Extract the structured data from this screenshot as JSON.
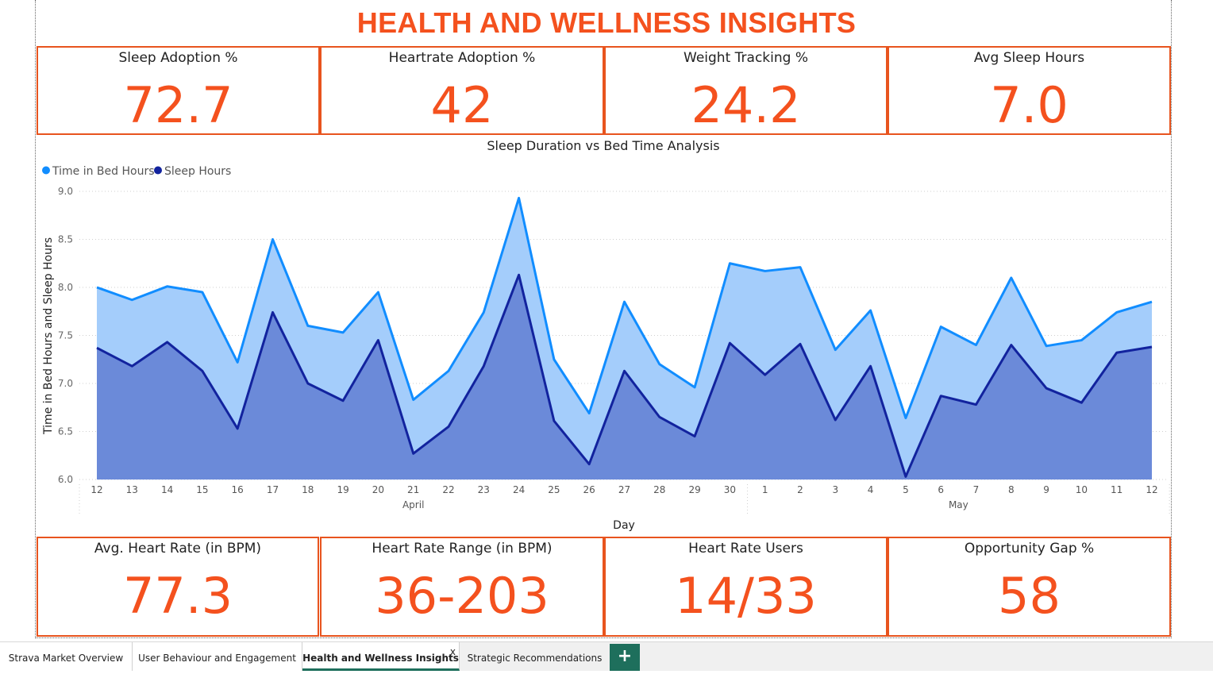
{
  "page": {
    "title": "HEALTH AND WELLNESS INSIGHTS"
  },
  "colors": {
    "accent": "#f4511e",
    "bed": "#118dff",
    "sleep": "#12239e",
    "bed_fill": "#a4cdfb",
    "sleep_fill": "#6b8ad9",
    "tab_accent": "#1e6f5c"
  },
  "kpis_top": [
    {
      "label": "Sleep Adoption %",
      "value": "72.7"
    },
    {
      "label": "Heartrate Adoption %",
      "value": "42"
    },
    {
      "label": "Weight Tracking %",
      "value": "24.2"
    },
    {
      "label": "Avg Sleep Hours",
      "value": "7.0"
    }
  ],
  "kpis_bottom": [
    {
      "label": "Avg. Heart Rate (in BPM)",
      "value": "77.3"
    },
    {
      "label": "Heart Rate Range (in BPM)",
      "value": "36-203"
    },
    {
      "label": "Heart Rate Users",
      "value": "14/33"
    },
    {
      "label": "Opportunity Gap %",
      "value": "58"
    }
  ],
  "chart_data": {
    "type": "area",
    "title": "Sleep Duration vs Bed Time Analysis",
    "xlabel": "Day",
    "ylabel": "Time in Bed Hours and Sleep Hours",
    "ylim": [
      6.0,
      9.0
    ],
    "yticks": [
      "6.0",
      "6.5",
      "7.0",
      "7.5",
      "8.0",
      "8.5",
      "9.0"
    ],
    "grid": true,
    "legend": "top-left",
    "categories": [
      "12",
      "13",
      "14",
      "15",
      "16",
      "17",
      "18",
      "19",
      "20",
      "21",
      "22",
      "23",
      "24",
      "25",
      "26",
      "27",
      "28",
      "29",
      "30",
      "1",
      "2",
      "3",
      "4",
      "5",
      "6",
      "7",
      "8",
      "9",
      "10",
      "11",
      "12"
    ],
    "months": [
      {
        "label": "April",
        "start": 0,
        "end": 18
      },
      {
        "label": "May",
        "start": 19,
        "end": 30
      }
    ],
    "series": [
      {
        "name": "Time in Bed Hours",
        "values": [
          8.0,
          7.87,
          8.01,
          7.95,
          7.22,
          8.5,
          7.6,
          7.53,
          7.95,
          6.83,
          7.13,
          7.74,
          8.93,
          7.25,
          6.69,
          7.85,
          7.2,
          6.96,
          8.25,
          8.17,
          8.21,
          7.35,
          7.76,
          6.64,
          7.59,
          7.4,
          8.1,
          7.39,
          7.45,
          7.74,
          7.85
        ]
      },
      {
        "name": "Sleep Hours",
        "values": [
          7.37,
          7.18,
          7.43,
          7.13,
          6.53,
          7.74,
          7.0,
          6.82,
          7.45,
          6.27,
          6.55,
          7.18,
          8.13,
          6.61,
          6.16,
          7.13,
          6.65,
          6.45,
          7.42,
          7.09,
          7.41,
          6.62,
          7.18,
          6.03,
          6.87,
          6.78,
          7.4,
          6.95,
          6.8,
          7.32,
          7.38
        ]
      }
    ]
  },
  "tabs": [
    {
      "label": "Strava Market Overview"
    },
    {
      "label": "User Behaviour and Engagement"
    },
    {
      "label": "Health and Wellness Insights",
      "close": "x"
    },
    {
      "label": "Strategic Recommendations"
    }
  ],
  "add_tab": "+"
}
